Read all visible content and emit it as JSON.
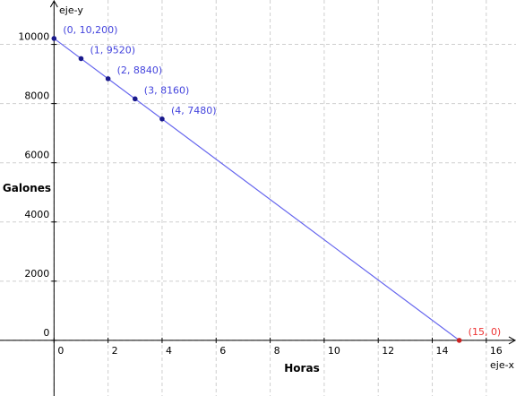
{
  "chart_data": {
    "type": "scatter",
    "x_label": "Horas",
    "y_label": "Galones",
    "x_axis_name": "eje-x",
    "y_axis_name": "eje-y",
    "xlim": [
      -2,
      17.1
    ],
    "ylim": [
      -1880,
      11500
    ],
    "xticks": [
      0,
      2,
      4,
      6,
      8,
      10,
      12,
      14,
      16
    ],
    "yticks": [
      0,
      2000,
      4000,
      6000,
      8000,
      10000
    ],
    "grid": true,
    "line": {
      "x": [
        0,
        15
      ],
      "values": [
        10200,
        0
      ],
      "color": "#6666ee"
    },
    "series": [
      {
        "color": "#1a1a8c",
        "label_color": "#4444dd",
        "x": [
          0,
          1,
          2,
          3,
          4
        ],
        "values": [
          10200,
          9520,
          8840,
          8160,
          7480
        ],
        "value_labels": [
          "(0, 10,200)",
          "(1, 9520)",
          "(2, 8840)",
          "(3, 8160)",
          "(4, 7480)"
        ]
      },
      {
        "color": "#cc2222",
        "label_color": "#ee3333",
        "x": [
          15
        ],
        "values": [
          0
        ],
        "value_labels": [
          "(15, 0)"
        ]
      }
    ]
  }
}
